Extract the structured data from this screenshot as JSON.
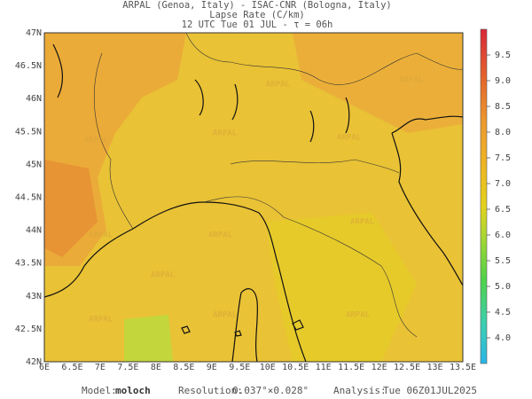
{
  "header": {
    "line1": "ARPAL (Genoa, Italy)  -  ISAC-CNR (Bologna, Italy)",
    "line2": "Lapse Rate (C/km)",
    "line3": "12 UTC Tue 01 JUL  -  τ = 06h"
  },
  "map": {
    "lat_labels": [
      "47N",
      "46.5N",
      "46N",
      "45.5N",
      "45N",
      "44.5N",
      "44N",
      "43.5N",
      "43N",
      "42.5N",
      "42N"
    ],
    "lon_labels": [
      "6E",
      "6.5E",
      "7E",
      "7.5E",
      "8E",
      "8.5E",
      "9E",
      "9.5E",
      "10E",
      "10.5E",
      "11E",
      "11.5E",
      "12E",
      "12.5E",
      "13E",
      "13.5E"
    ],
    "watermark": "ARPAL"
  },
  "colorbar": {
    "range": [
      3.5,
      10
    ],
    "ticks": [
      {
        "value": 4,
        "label": "4.0"
      },
      {
        "value": 4.5,
        "label": "4.5"
      },
      {
        "value": 5,
        "label": "5.0"
      },
      {
        "value": 5.5,
        "label": "5.5"
      },
      {
        "value": 6,
        "label": "6.0"
      },
      {
        "value": 6.5,
        "label": "6.5"
      },
      {
        "value": 7,
        "label": "7.0"
      },
      {
        "value": 7.5,
        "label": "7.5"
      },
      {
        "value": 8,
        "label": "8.0"
      },
      {
        "value": 8.5,
        "label": "8.5"
      },
      {
        "value": 9,
        "label": "9.0"
      },
      {
        "value": 9.5,
        "label": "9.5"
      }
    ]
  },
  "footer": {
    "model_label": "Model:",
    "model": "moloch",
    "resolution_label": "Resolution:",
    "resolution": "0.037°×0.028°",
    "analysis_label": "Analysis:",
    "analysis": "Tue 06Z01JUL2025"
  }
}
